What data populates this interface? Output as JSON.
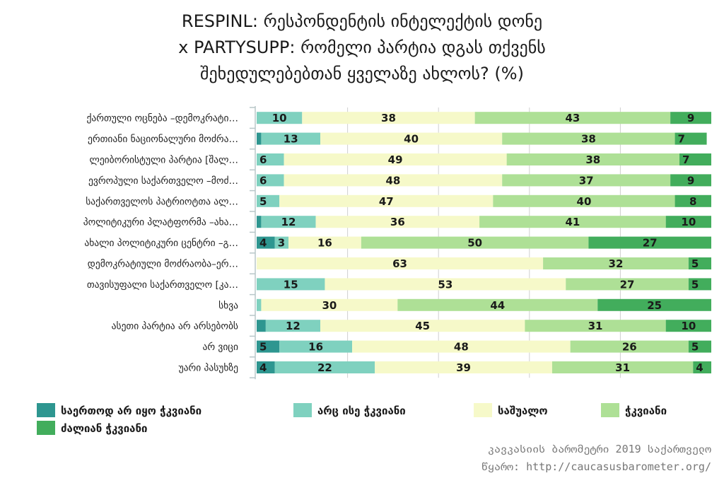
{
  "title_lines": [
    "RESPINL: რესპონდენტის ინტელექტის დონე",
    "x PARTYSUPP: რომელი პარტია დგას თქვენს",
    "შეხედულებებთან ყველაზე ახლოს? (%)"
  ],
  "source_lines": [
    "კავკასიის ბარომეტრი 2019 საქართველო",
    "წყარო: http://caucasusbarometer.org/"
  ],
  "colors": {
    "s1": "#2e9690",
    "s2": "#7fd1bf",
    "s3": "#f6f9c9",
    "s4": "#aee096",
    "s5": "#42ad5c"
  },
  "chart_data": {
    "type": "bar",
    "orientation": "horizontal",
    "stacked": true,
    "xlim": [
      0,
      100
    ],
    "grid": true,
    "legend_position": "bottom",
    "categories": [
      "ქართული ოცნება –დემოკრატი…",
      "ერთიანი ნაციონალური მოძრა…",
      "ლეიბორისტული პარტია [შალ…",
      "ევროპული საქართველო –მოძ…",
      "საქართველოს პატრიოტთა ალ…",
      "პოლიტიკური პლატფორმა –ახა…",
      "ახალი პოლიტიკური ცენტრი –გ…",
      "დემოკრატიული მოძრაობა–ერ…",
      "თავისუფალი საქართველო [კა…",
      "სხვა",
      "ასეთი პარტია არ არსებობს",
      "არ ვიცი",
      "უარი პასუხზე"
    ],
    "series": [
      {
        "name": "საერთოდ არ იყო ჭკვიანი",
        "color_key": "s1",
        "values": [
          0,
          1,
          0,
          0,
          0,
          1,
          4,
          0,
          0,
          0,
          2,
          5,
          4
        ]
      },
      {
        "name": "არც ისე ჭკვიანი",
        "color_key": "s2",
        "values": [
          10,
          13,
          6,
          6,
          5,
          12,
          3,
          0,
          15,
          1,
          12,
          16,
          22
        ]
      },
      {
        "name": "საშუალო",
        "color_key": "s3",
        "values": [
          38,
          40,
          49,
          48,
          47,
          36,
          16,
          63,
          53,
          30,
          45,
          48,
          39
        ]
      },
      {
        "name": "ჭკვიანი",
        "color_key": "s4",
        "values": [
          43,
          38,
          38,
          37,
          40,
          41,
          50,
          32,
          27,
          44,
          31,
          26,
          31
        ]
      },
      {
        "name": "ძალიან ჭკვიანი",
        "color_key": "s5",
        "values": [
          9,
          7,
          7,
          9,
          8,
          10,
          27,
          5,
          5,
          25,
          10,
          5,
          4
        ]
      }
    ]
  }
}
